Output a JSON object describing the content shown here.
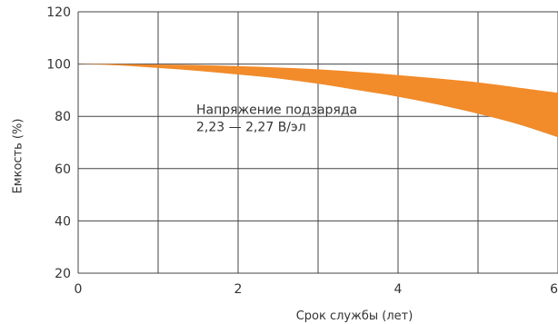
{
  "chart_data": {
    "type": "area",
    "title": "",
    "xlabel": "Срок службы (лет)",
    "ylabel": "Емкость (%)",
    "xlim": [
      0,
      6
    ],
    "ylim": [
      20,
      120
    ],
    "x_ticks": [
      0,
      1,
      2,
      3,
      4,
      5,
      6
    ],
    "x_tick_labels": [
      "0",
      "2",
      "4",
      "6"
    ],
    "x_tick_label_values": [
      0,
      2,
      4,
      6
    ],
    "y_ticks": [
      20,
      40,
      60,
      80,
      100,
      120
    ],
    "y_tick_labels": [
      "20",
      "40",
      "60",
      "80",
      "100",
      "120"
    ],
    "grid": true,
    "band": {
      "color": "#f28b2a",
      "x": [
        0,
        0.5,
        1,
        1.5,
        2,
        2.5,
        3,
        3.5,
        4,
        4.5,
        5,
        5.5,
        6
      ],
      "upper": [
        100,
        100,
        99.8,
        99.6,
        99.2,
        98.7,
        98,
        97,
        95.8,
        94.5,
        93,
        91,
        89
      ],
      "lower": [
        100,
        99.5,
        98.5,
        97.4,
        96,
        94.5,
        92.5,
        90,
        87.5,
        84.5,
        81,
        77,
        72
      ]
    },
    "annotation": {
      "line1": "Напряжение подзаряда",
      "line2": "2,23 — 2,27 В/эл",
      "x": 2.5,
      "y": 83
    }
  }
}
